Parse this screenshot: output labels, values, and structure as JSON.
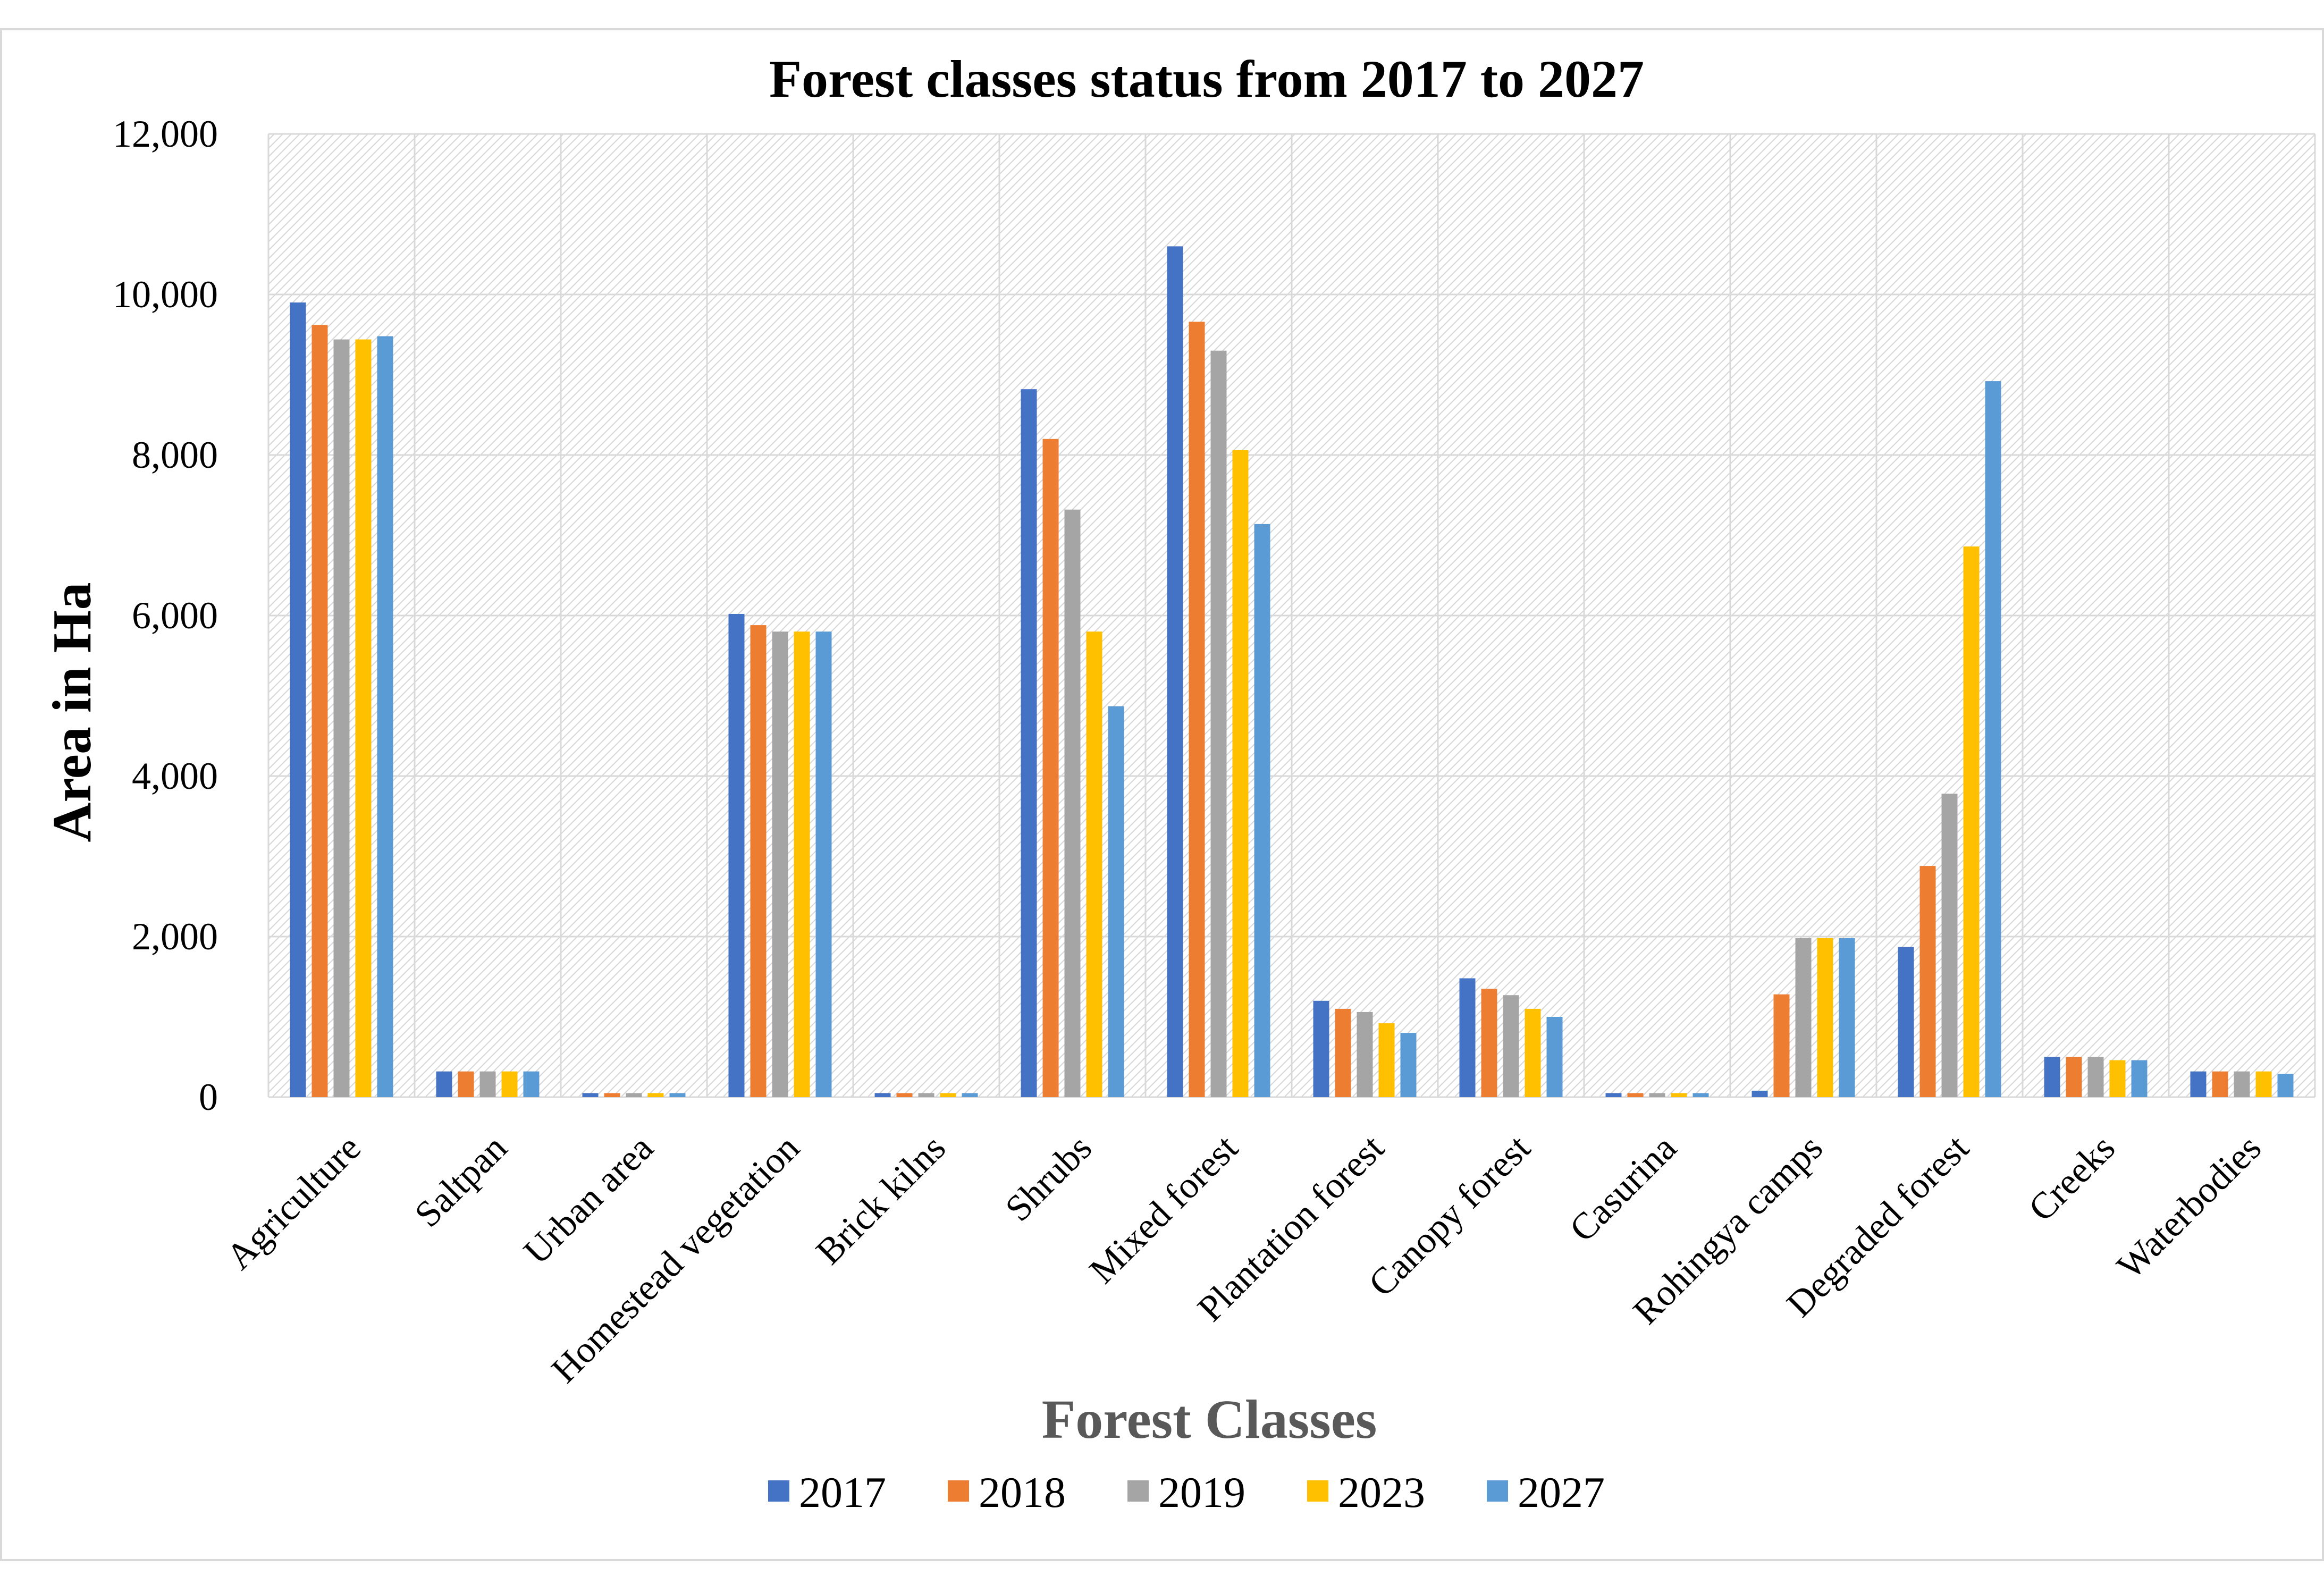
{
  "chart_data": {
    "type": "bar",
    "title": "Forest classes status from 2017 to 2027",
    "xlabel": "Forest Classes",
    "ylabel": "Area in Ha",
    "ylim": [
      0,
      12000
    ],
    "yticks": [
      "0",
      "2,000",
      "4,000",
      "6,000",
      "8,000",
      "10,000",
      "12,000"
    ],
    "grid": true,
    "legend_position": "bottom",
    "categories": [
      "Agriculture",
      "Saltpan",
      "Urban area",
      "Homestead vegetation",
      "Brick kilns",
      "Shrubs",
      "Mixed forest",
      "Plantation forest",
      "Canopy forest",
      "Casurina",
      "Rohingya camps",
      "Degraded forest",
      "Creeks",
      "Waterbodies"
    ],
    "series": [
      {
        "name": "2017",
        "color": "#4472c4",
        "values": [
          9900,
          320,
          50,
          6020,
          50,
          8820,
          10600,
          1200,
          1480,
          50,
          80,
          1870,
          500,
          320
        ]
      },
      {
        "name": "2018",
        "color": "#ed7d31",
        "values": [
          9620,
          320,
          50,
          5880,
          50,
          8200,
          9660,
          1100,
          1350,
          50,
          1280,
          2880,
          500,
          320
        ]
      },
      {
        "name": "2019",
        "color": "#a5a5a5",
        "values": [
          9440,
          320,
          50,
          5800,
          50,
          7320,
          9300,
          1060,
          1270,
          50,
          1980,
          3780,
          500,
          320
        ]
      },
      {
        "name": "2023",
        "color": "#ffc000",
        "values": [
          9440,
          320,
          50,
          5800,
          50,
          5800,
          8060,
          920,
          1100,
          50,
          1980,
          6860,
          460,
          320
        ]
      },
      {
        "name": "2027",
        "color": "#5b9bd5",
        "values": [
          9480,
          320,
          50,
          5800,
          50,
          4870,
          7140,
          800,
          1000,
          50,
          1980,
          8920,
          460,
          290
        ]
      }
    ]
  }
}
